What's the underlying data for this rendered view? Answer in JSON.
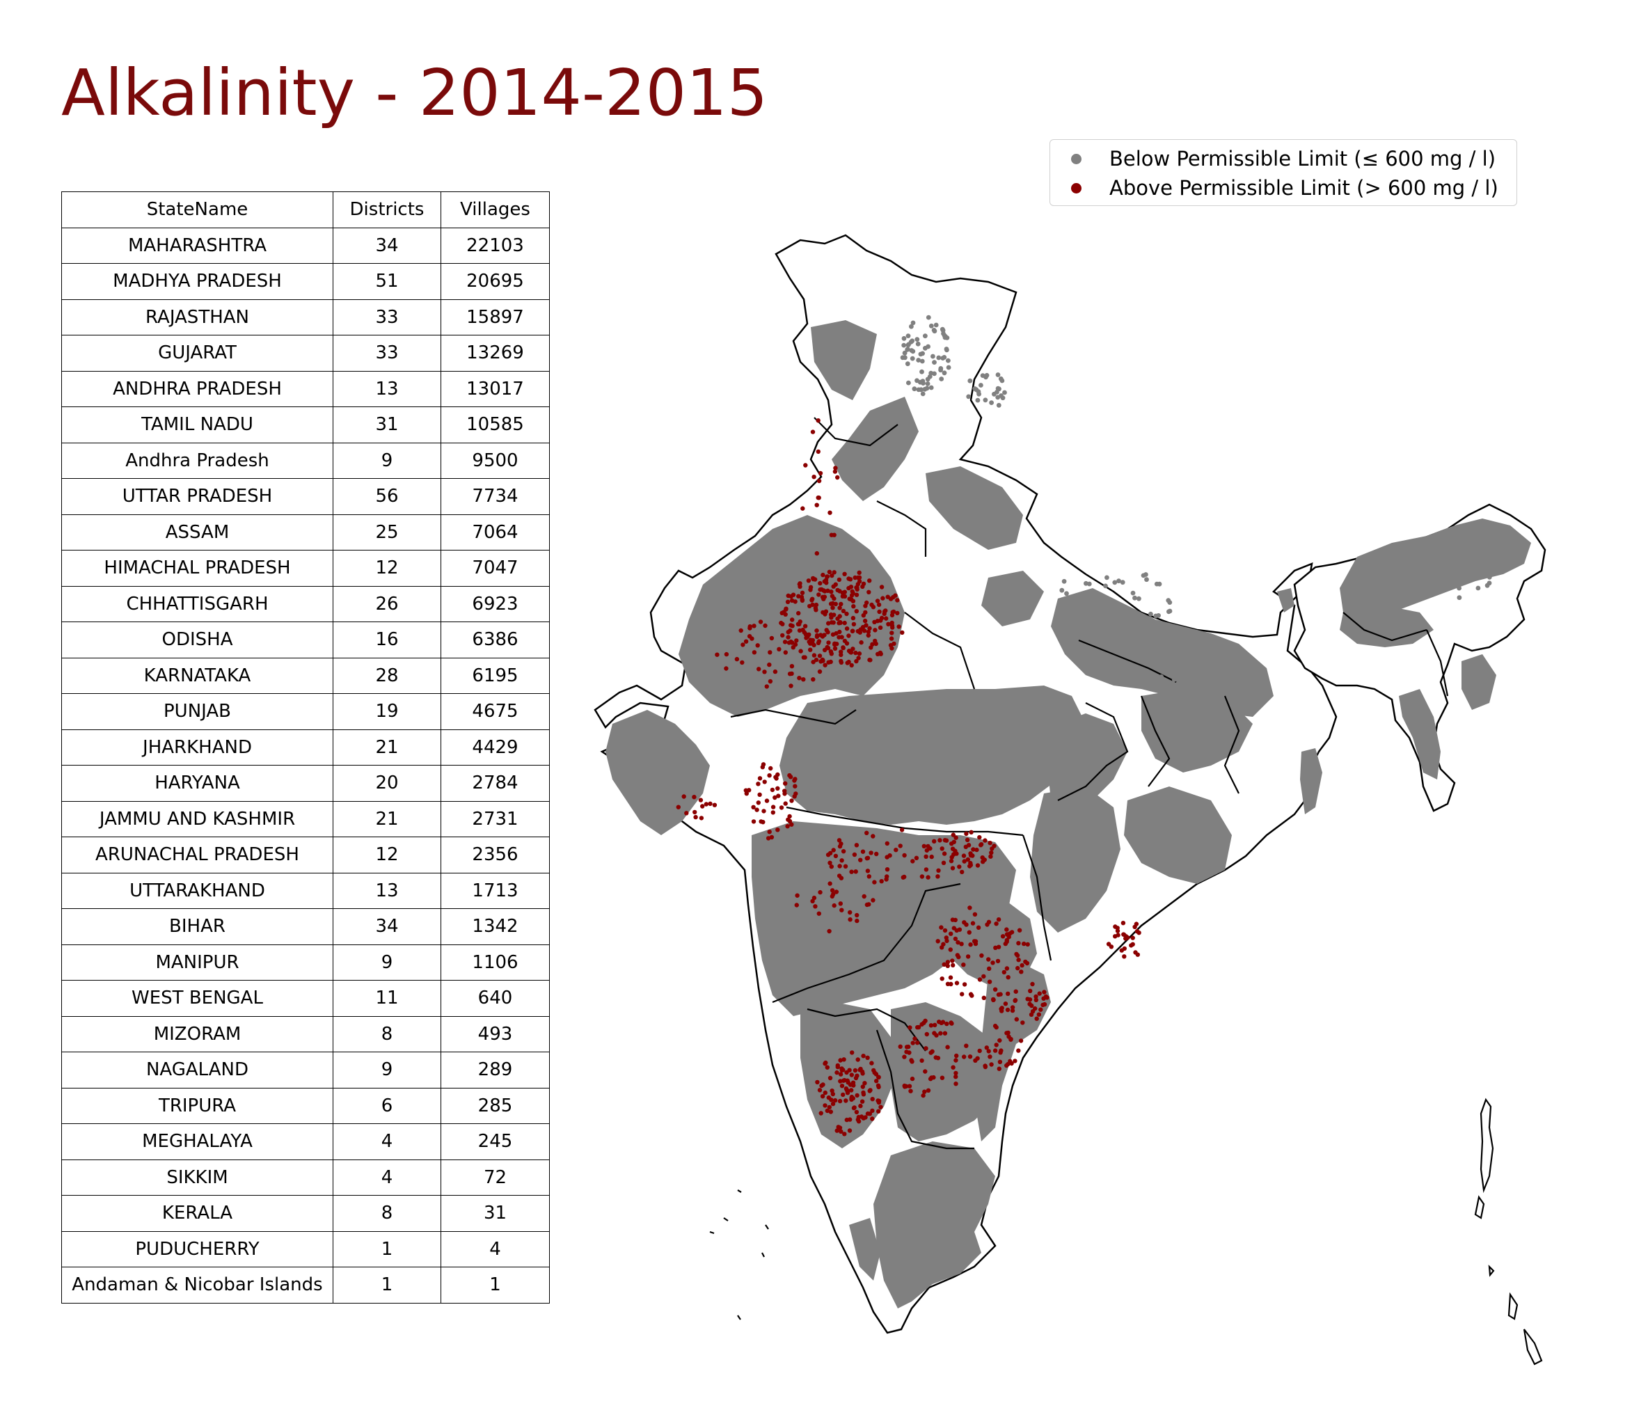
{
  "title": "Alkalinity - 2014-2015",
  "legend": {
    "items": [
      {
        "label": "Below Permissible Limit (≤ 600 mg / l)",
        "color": "#808080"
      },
      {
        "label": "Above Permissible Limit (> 600 mg / l)",
        "color": "#8b0000"
      }
    ]
  },
  "table": {
    "headers": [
      "StateName",
      "Districts",
      "Villages"
    ],
    "rows": [
      [
        "MAHARASHTRA",
        "34",
        "22103"
      ],
      [
        "MADHYA PRADESH",
        "51",
        "20695"
      ],
      [
        "RAJASTHAN",
        "33",
        "15897"
      ],
      [
        "GUJARAT",
        "33",
        "13269"
      ],
      [
        "ANDHRA PRADESH",
        "13",
        "13017"
      ],
      [
        "TAMIL NADU",
        "31",
        "10585"
      ],
      [
        "Andhra Pradesh",
        "9",
        "9500"
      ],
      [
        "UTTAR PRADESH",
        "56",
        "7734"
      ],
      [
        "ASSAM",
        "25",
        "7064"
      ],
      [
        "HIMACHAL PRADESH",
        "12",
        "7047"
      ],
      [
        "CHHATTISGARH",
        "26",
        "6923"
      ],
      [
        "ODISHA",
        "16",
        "6386"
      ],
      [
        "KARNATAKA",
        "28",
        "6195"
      ],
      [
        "PUNJAB",
        "19",
        "4675"
      ],
      [
        "JHARKHAND",
        "21",
        "4429"
      ],
      [
        "HARYANA",
        "20",
        "2784"
      ],
      [
        "JAMMU AND KASHMIR",
        "21",
        "2731"
      ],
      [
        "ARUNACHAL PRADESH",
        "12",
        "2356"
      ],
      [
        "UTTARAKHAND",
        "13",
        "1713"
      ],
      [
        "BIHAR",
        "34",
        "1342"
      ],
      [
        "MANIPUR",
        "9",
        "1106"
      ],
      [
        "WEST BENGAL",
        "11",
        "640"
      ],
      [
        "MIZORAM",
        "8",
        "493"
      ],
      [
        "NAGALAND",
        "9",
        "289"
      ],
      [
        "TRIPURA",
        "6",
        "285"
      ],
      [
        "MEGHALAYA",
        "4",
        "245"
      ],
      [
        "SIKKIM",
        "4",
        "72"
      ],
      [
        "KERALA",
        "8",
        "31"
      ],
      [
        "PUDUCHERRY",
        "1",
        "4"
      ],
      [
        "Andaman & Nicobar Islands",
        "1",
        "1"
      ]
    ]
  }
}
